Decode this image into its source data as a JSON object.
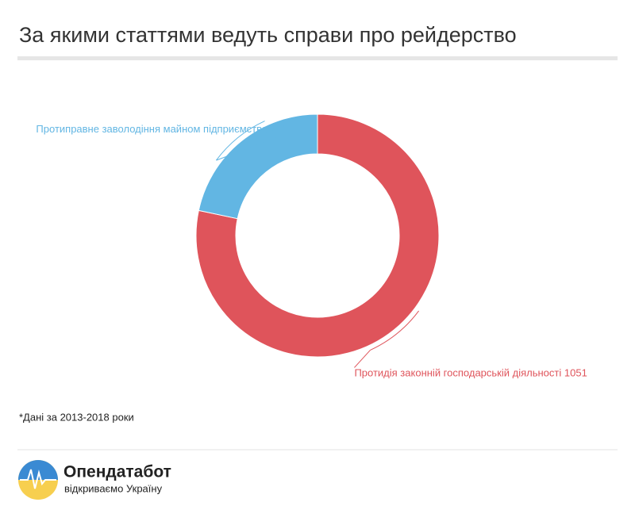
{
  "chart_data": {
    "type": "donut",
    "title": "За якими статтями ведуть справи про рейдерство",
    "categories": [
      "Протидія законній господарській діяльності",
      "Протиправне заволодіння майном підприємства"
    ],
    "values": [
      1051,
      291
    ],
    "colors": [
      "#df545b",
      "#62b6e3"
    ],
    "footnote": "*Дані за 2013-2018 роки"
  },
  "logo": {
    "name": "Опендатабот",
    "tagline": "відкриваємо Україну"
  }
}
